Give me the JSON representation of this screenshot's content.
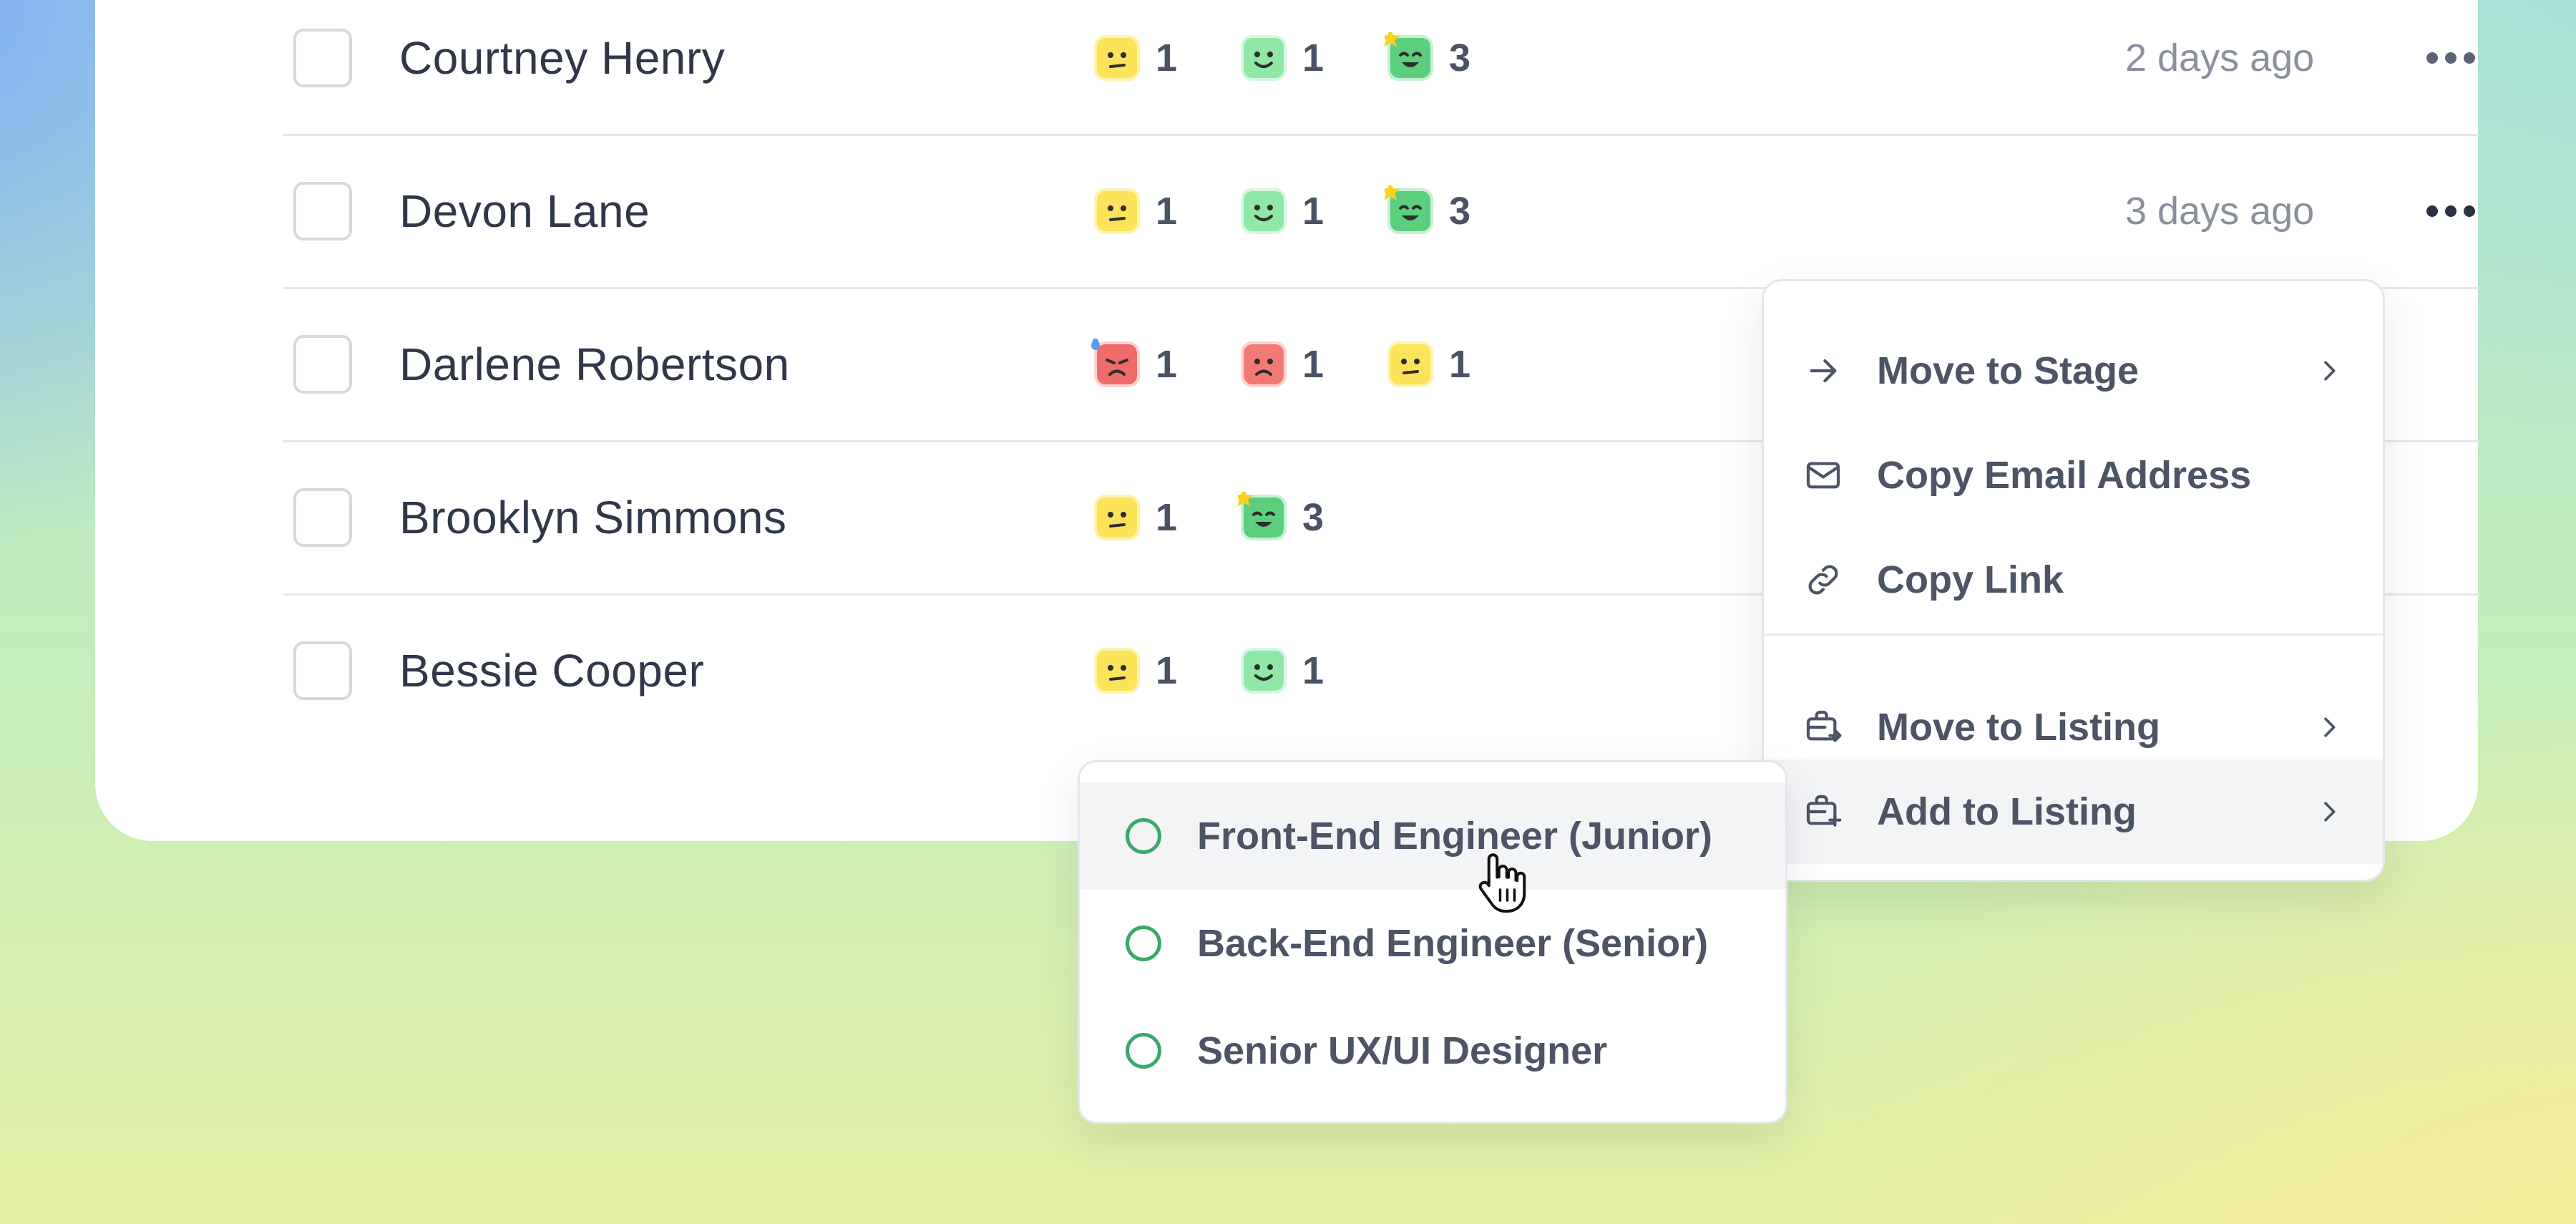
{
  "candidates": [
    {
      "name": "Courtney Henry",
      "time": "2 days ago",
      "reactions": [
        {
          "face": "neutral",
          "count": "1"
        },
        {
          "face": "happy",
          "count": "1"
        },
        {
          "face": "star",
          "count": "3"
        }
      ]
    },
    {
      "name": "Devon Lane",
      "time": "3 days ago",
      "reactions": [
        {
          "face": "neutral",
          "count": "1"
        },
        {
          "face": "happy",
          "count": "1"
        },
        {
          "face": "star",
          "count": "3"
        }
      ]
    },
    {
      "name": "Darlene Robertson",
      "time": "",
      "reactions": [
        {
          "face": "sweat-sad",
          "count": "1"
        },
        {
          "face": "sad",
          "count": "1"
        },
        {
          "face": "neutral",
          "count": "1"
        }
      ]
    },
    {
      "name": "Brooklyn Simmons",
      "time": "",
      "reactions": [
        {
          "face": "neutral",
          "count": "1"
        },
        {
          "face": "star",
          "count": "3"
        }
      ]
    },
    {
      "name": "Bessie Cooper",
      "time": "",
      "reactions": [
        {
          "face": "neutral",
          "count": "1"
        },
        {
          "face": "happy",
          "count": "1"
        }
      ]
    }
  ],
  "context_menu": {
    "items": [
      {
        "label": "Move to Stage",
        "icon": "arrow-right-icon",
        "submenu": true
      },
      {
        "label": "Copy Email Address",
        "icon": "mail-icon",
        "submenu": false
      },
      {
        "label": "Copy Link",
        "icon": "link-icon",
        "submenu": false
      },
      {
        "label": "Move to Listing",
        "icon": "briefcase-move-icon",
        "submenu": true
      },
      {
        "label": "Add to Listing",
        "icon": "briefcase-add-icon",
        "submenu": true
      }
    ]
  },
  "listing_submenu": {
    "items": [
      {
        "label": "Front-End Engineer (Junior)"
      },
      {
        "label": "Back-End Engineer (Senior)"
      },
      {
        "label": "Senior UX/UI Designer"
      }
    ]
  },
  "colors": {
    "neutral": "#fbe35a",
    "happy": "#8fe7a8",
    "star": "#5ccf7f",
    "sad": "#f27a76",
    "radio": "#3aa86a"
  }
}
